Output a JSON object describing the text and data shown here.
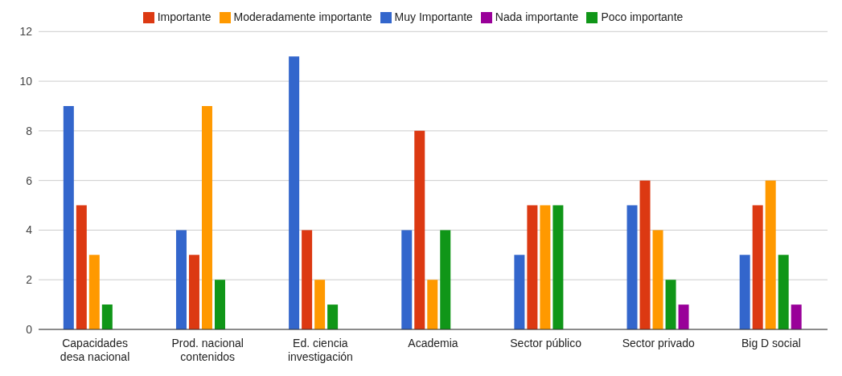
{
  "chart_data": {
    "type": "bar",
    "categories": [
      "Capacidades desa nacional",
      "Prod. nacional contenidos",
      "Ed. ciencia investigación",
      "Academia",
      "Sector público",
      "Sector privado",
      "Big D social"
    ],
    "series": [
      {
        "name": "Muy Importante",
        "color": "#3366cc",
        "values": [
          9,
          4,
          11,
          4,
          3,
          5,
          3
        ]
      },
      {
        "name": "Importante",
        "color": "#dc3912",
        "values": [
          5,
          3,
          4,
          8,
          5,
          6,
          5
        ]
      },
      {
        "name": "Moderadamente importante",
        "color": "#ff9900",
        "values": [
          3,
          9,
          2,
          2,
          5,
          4,
          6
        ]
      },
      {
        "name": "Poco importante",
        "color": "#109618",
        "values": [
          1,
          2,
          1,
          4,
          5,
          2,
          3
        ]
      },
      {
        "name": "Nada importante",
        "color": "#990099",
        "values": [
          0,
          0,
          0,
          0,
          0,
          1,
          1
        ]
      }
    ],
    "ylim": [
      0,
      12
    ],
    "yticks": [
      0,
      2,
      4,
      6,
      8,
      10,
      12
    ],
    "grid": "y",
    "legend": "top"
  }
}
